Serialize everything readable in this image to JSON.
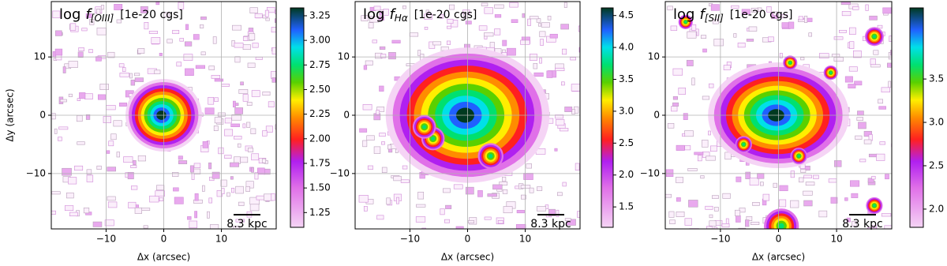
{
  "chart_data": [
    {
      "type": "image",
      "title": {
        "prefix": "log",
        "symbol": "f",
        "subscript": "[OIII]",
        "unit": "[1e-20 cgs]"
      },
      "xlabel": "Δx (arcsec)",
      "ylabel": "Δy (arcsec)",
      "xlim": [
        -19.5,
        19.5
      ],
      "ylim": [
        -19.5,
        19.5
      ],
      "xticks": [
        {
          "value": -10,
          "label": "−10"
        },
        0,
        10
      ],
      "yticks": [
        {
          "value": -10,
          "label": "−10"
        },
        0,
        10
      ],
      "grid": true,
      "colorbar": {
        "lim": [
          1.1,
          3.33
        ],
        "ticks": [
          {
            "value": 1.25,
            "label": "1.25"
          },
          {
            "value": 1.5,
            "label": "1.50"
          },
          {
            "value": 1.75,
            "label": "1.75"
          },
          {
            "value": 2,
            "label": "2.00"
          },
          {
            "value": 2.25,
            "label": "2.25"
          },
          {
            "value": 2.5,
            "label": "2.50"
          },
          {
            "value": 2.75,
            "label": "2.75"
          },
          {
            "value": 3,
            "label": "3.00"
          },
          {
            "value": 3.25,
            "label": "3.25"
          }
        ]
      },
      "scalebar": "8.3 kpc"
    },
    {
      "type": "image",
      "title": {
        "prefix": "log",
        "symbol": "f",
        "subscript": "Hα",
        "unit": "[1e-20 cgs]"
      },
      "xlabel": "Δx (arcsec)",
      "xlim": [
        -19.5,
        19.5
      ],
      "ylim": [
        -19.5,
        19.5
      ],
      "xticks": [
        {
          "value": -10,
          "label": "−10"
        },
        0,
        10
      ],
      "yticks": [
        {
          "value": -10,
          "label": "−10"
        },
        0,
        10
      ],
      "grid": true,
      "colorbar": {
        "lim": [
          1.18,
          4.62
        ],
        "ticks": [
          {
            "value": 1.5,
            "label": "1.5"
          },
          {
            "value": 2,
            "label": "2.0"
          },
          {
            "value": 2.5,
            "label": "2.5"
          },
          {
            "value": 3,
            "label": "3.0"
          },
          {
            "value": 3.5,
            "label": "3.5"
          },
          {
            "value": 4,
            "label": "4.0"
          },
          {
            "value": 4.5,
            "label": "4.5"
          }
        ]
      },
      "scalebar": "8.3 kpc"
    },
    {
      "type": "image",
      "title": {
        "prefix": "log",
        "symbol": "f",
        "subscript": "[SII]",
        "unit": "[1e-20 cgs]"
      },
      "xlabel": "Δx (arcsec)",
      "xlim": [
        -19.5,
        19.5
      ],
      "ylim": [
        -19.5,
        19.5
      ],
      "xticks": [
        {
          "value": -10,
          "label": "−10"
        },
        0,
        10
      ],
      "yticks": [
        {
          "value": -10,
          "label": "−10"
        },
        0,
        10
      ],
      "grid": true,
      "colorbar": {
        "lim": [
          1.79,
          4.32
        ],
        "ticks": [
          {
            "value": 2,
            "label": "2.0"
          },
          {
            "value": 2.5,
            "label": "2.5"
          },
          {
            "value": 3,
            "label": "3.0"
          },
          {
            "value": 3.5,
            "label": "3.5"
          }
        ]
      },
      "scalebar": "8.3 kpc"
    }
  ]
}
